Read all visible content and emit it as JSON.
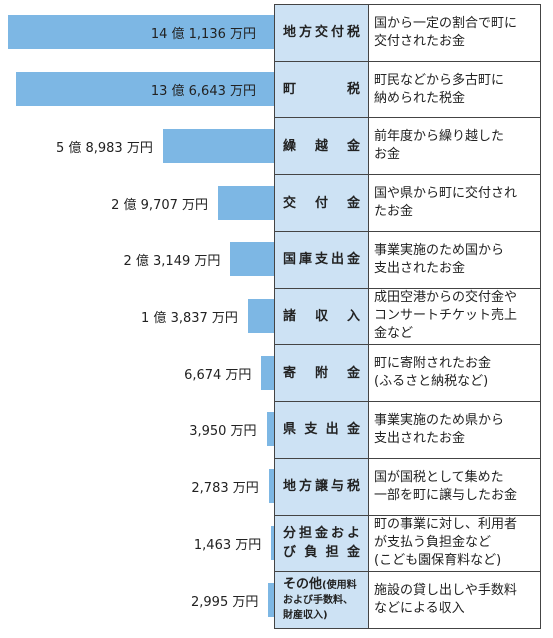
{
  "chart_data": {
    "type": "bar",
    "color": "#7db7e4",
    "label_color": "#cde2f4",
    "categories": [
      "地方交付税",
      "町税",
      "繰越金",
      "交付金",
      "国庫支出金",
      "諸収入",
      "寄附金",
      "県支出金",
      "地方譲与税",
      "分担金および負担金",
      "その他"
    ],
    "other_note": "(使用料および手数料、財産収入)",
    "values": [
      141136,
      136643,
      58983,
      29707,
      23149,
      13837,
      6674,
      3950,
      2783,
      1463,
      2995
    ],
    "value_labels": [
      "14 億 1,136 万円",
      "13 億 6,643 万円",
      "5 億 8,983 万円",
      "2 億 9,707 万円",
      "2 億 3,149 万円",
      "1 億 3,837 万円",
      "6,674 万円",
      "3,950 万円",
      "2,783 万円",
      "1,463 万円",
      "2,995 万円"
    ],
    "descriptions": [
      "国から一定の割合で町に\n交付されたお金",
      "町民などから多古町に\n納められた税金",
      "前年度から繰り越した\nお金",
      "国や県から町に交付され\nたお金",
      "事業実施のため国から\n支出されたお金",
      "成田空港からの交付金や\nコンサートチケット売上\n金など",
      "町に寄附されたお金\n(ふるさと納税など)",
      "事業実施のため県から\n支出されたお金",
      "国が国税として集めた\n一部を町に譲与したお金",
      "町の事業に対し、利用者\nが支払う負担金など\n(こども園保育料など)",
      "施設の貸し出しや手数料\nなどによる収入"
    ]
  }
}
